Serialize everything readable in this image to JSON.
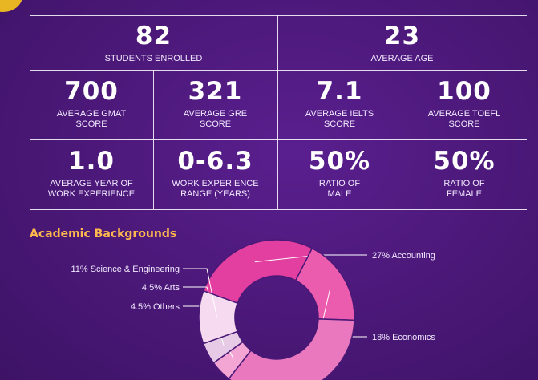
{
  "stats": [
    {
      "value": "82",
      "label": "STUDENTS ENROLLED"
    },
    {
      "value": "23",
      "label": "AVERAGE AGE"
    },
    {
      "value": "700",
      "label": "AVERAGE GMAT",
      "label2": "SCORE"
    },
    {
      "value": "321",
      "label": "AVERAGE GRE",
      "label2": "SCORE"
    },
    {
      "value": "7.1",
      "label": "AVERAGE IELTS",
      "label2": "SCORE"
    },
    {
      "value": "100",
      "label": "AVERAGE TOEFL",
      "label2": "SCORE"
    },
    {
      "value": "1.0",
      "label": "AVERAGE YEAR OF",
      "label2": "WORK EXPERIENCE"
    },
    {
      "value": "0-6.3",
      "label": "WORK EXPERIENCE",
      "label2": "RANGE (YEARS)"
    },
    {
      "value": "50%",
      "label": "RATIO OF",
      "label2": "MALE"
    },
    {
      "value": "50%",
      "label": "RATIO OF",
      "label2": "FEMALE"
    }
  ],
  "colors": {
    "background": "#4a1877",
    "title_accent": "#ffb84d",
    "corner_accent": "#e8b623"
  },
  "chart_data": {
    "type": "pie",
    "title": "Academic Backgrounds",
    "donut": true,
    "slices": [
      {
        "label": "27% Accounting",
        "value": 27,
        "color": "#e33fa0"
      },
      {
        "label": "18% Economics",
        "value": 18,
        "color": "#eb5bae"
      },
      {
        "label": "",
        "value": 35,
        "color": "#e978bf"
      },
      {
        "label": "4.5% Others",
        "value": 4.5,
        "color": "#f3a6d3"
      },
      {
        "label": "4.5% Arts",
        "value": 4.5,
        "color": "#e7cbe6"
      },
      {
        "label": "11% Science & Engineering",
        "value": 11,
        "color": "#f6dbf0"
      }
    ]
  }
}
